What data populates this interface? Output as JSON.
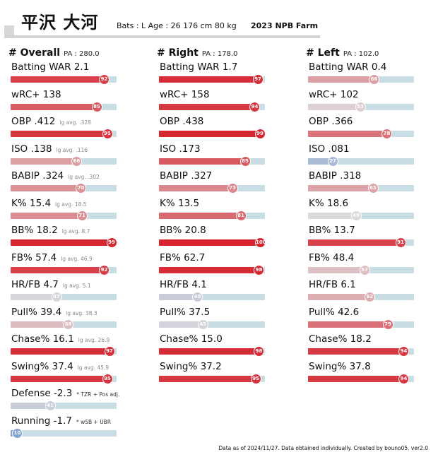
{
  "player": {
    "name": "平沢 大河",
    "info": "Bats : L  Age : 26  176 cm 80 kg",
    "season": "2023 NPB Farm"
  },
  "columns": [
    {
      "title": "# Overall",
      "pa": "PA : 280.0",
      "metrics": [
        {
          "label": "Batting WAR",
          "value": "2.1",
          "pct": 92
        },
        {
          "label": "wRC+",
          "value": "138",
          "pct": 85
        },
        {
          "label": "OBP",
          "value": ".412",
          "lg": "lg avg. .328",
          "pct": 95
        },
        {
          "label": "ISO",
          "value": ".138",
          "lg": "lg avg. .116",
          "pct": 66
        },
        {
          "label": "BABIP",
          "value": ".324",
          "lg": "lg avg. .302",
          "pct": 70
        },
        {
          "label": "K%",
          "value": "15.4",
          "lg": "lg avg. 18.5",
          "pct": 71
        },
        {
          "label": "BB%",
          "value": "18.2",
          "lg": "lg avg. 8.7",
          "pct": 99
        },
        {
          "label": "FB%",
          "value": "57.4",
          "lg": "lg avg. 46.9",
          "pct": 92
        },
        {
          "label": "HR/FB",
          "value": "4.7",
          "lg": "lg avg. 5.1",
          "pct": 47
        },
        {
          "label": "Pull%",
          "value": "39.4",
          "lg": "lg avg. 38.3",
          "pct": 58
        },
        {
          "label": "Chase%",
          "value": "16.1",
          "lg": "lg avg. 26.9",
          "pct": 97
        },
        {
          "label": "Swing%",
          "value": "37.4",
          "lg": "lg avg. 45.9",
          "pct": 95
        },
        {
          "label": "Defense",
          "value": "-2.3",
          "note": "* TZR + Pos adj.",
          "pct": 41
        },
        {
          "label": "Running",
          "value": "-1.7",
          "note": "* wSB + UBR",
          "pct": 10
        }
      ]
    },
    {
      "title": "# Right",
      "pa": "PA : 178.0",
      "metrics": [
        {
          "label": "Batting WAR",
          "value": "1.7",
          "pct": 97
        },
        {
          "label": "wRC+",
          "value": "158",
          "pct": 94
        },
        {
          "label": "OBP",
          "value": ".438",
          "pct": 99
        },
        {
          "label": "ISO",
          "value": ".173",
          "pct": 85
        },
        {
          "label": "BABIP",
          "value": ".327",
          "pct": 73
        },
        {
          "label": "K%",
          "value": "13.5",
          "pct": 81
        },
        {
          "label": "BB%",
          "value": "20.8",
          "pct": 100
        },
        {
          "label": "FB%",
          "value": "62.7",
          "pct": 98
        },
        {
          "label": "HR/FB",
          "value": "4.1",
          "pct": 40
        },
        {
          "label": "Pull%",
          "value": "37.5",
          "pct": 45
        },
        {
          "label": "Chase%",
          "value": "15.0",
          "pct": 98
        },
        {
          "label": "Swing%",
          "value": "37.2",
          "pct": 95
        }
      ]
    },
    {
      "title": "# Left",
      "pa": "PA : 102.0",
      "metrics": [
        {
          "label": "Batting WAR",
          "value": "0.4",
          "pct": 66
        },
        {
          "label": "wRC+",
          "value": "102",
          "pct": 53
        },
        {
          "label": "OBP",
          "value": ".366",
          "pct": 78
        },
        {
          "label": "ISO",
          "value": ".081",
          "pct": 27
        },
        {
          "label": "BABIP",
          "value": ".318",
          "pct": 65
        },
        {
          "label": "K%",
          "value": "18.6",
          "pct": 49
        },
        {
          "label": "BB%",
          "value": "13.7",
          "pct": 91
        },
        {
          "label": "FB%",
          "value": "48.4",
          "pct": 57
        },
        {
          "label": "HR/FB",
          "value": "6.1",
          "pct": 62
        },
        {
          "label": "Pull%",
          "value": "42.6",
          "pct": 79
        },
        {
          "label": "Chase%",
          "value": "18.2",
          "pct": 94
        },
        {
          "label": "Swing%",
          "value": "37.8",
          "pct": 94
        }
      ]
    }
  ],
  "footer": "Data as of 2024/11/27.  Data obtained individually.  Created by bouno05.   ver2.0"
}
